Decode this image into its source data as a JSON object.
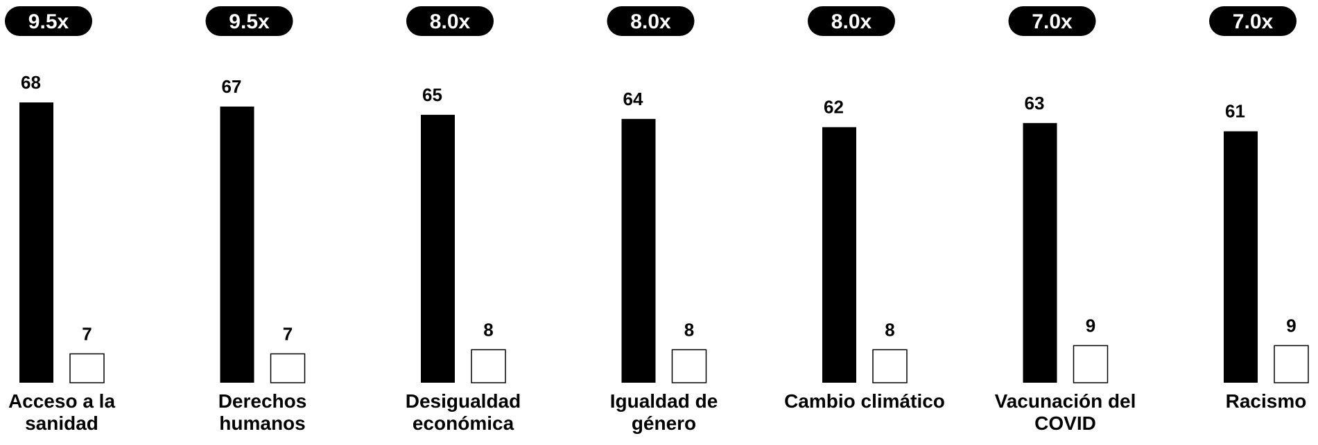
{
  "chart_data": {
    "type": "bar",
    "categories": [
      [
        "Acceso a la",
        "sanidad"
      ],
      [
        "Derechos",
        "humanos"
      ],
      [
        "Desigualdad",
        "económica"
      ],
      [
        "Igualdad de",
        "género"
      ],
      [
        "Cambio climático"
      ],
      [
        "Vacunación del",
        "COVID"
      ],
      [
        "Racismo"
      ]
    ],
    "series": [
      {
        "values": [
          68,
          67,
          65,
          64,
          62,
          63,
          61
        ],
        "color": "#000000",
        "style": "filled"
      },
      {
        "values": [
          7,
          7,
          8,
          8,
          8,
          9,
          9
        ],
        "color": "#ffffff",
        "stroke": "#000000",
        "style": "outline"
      }
    ],
    "ratios": [
      "9.5x",
      "9.5x",
      "8.0x",
      "8.0x",
      "8.0x",
      "7.0x",
      "7.0x"
    ],
    "ylim": [
      0,
      68
    ],
    "grid": false,
    "legend": "none"
  }
}
